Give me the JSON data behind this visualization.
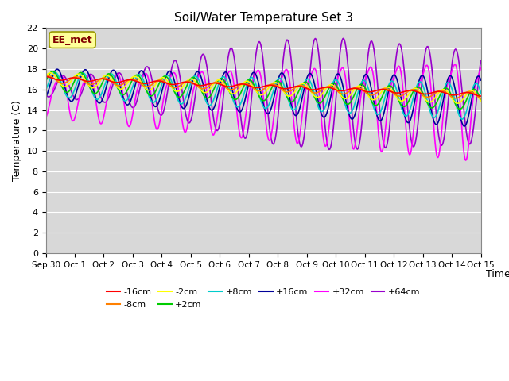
{
  "title": "Soil/Water Temperature Set 3",
  "xlabel": "Time",
  "ylabel": "Temperature (C)",
  "ylim": [
    0,
    22
  ],
  "yticks": [
    0,
    2,
    4,
    6,
    8,
    10,
    12,
    14,
    16,
    18,
    20,
    22
  ],
  "annotation": "EE_met",
  "annotation_box_color": "#ffff99",
  "annotation_text_color": "#800000",
  "xtick_labels": [
    "Sep 30",
    "Oct 1",
    "Oct 2",
    "Oct 3",
    "Oct 4",
    "Oct 5",
    "Oct 6",
    "Oct 7",
    "Oct 8",
    "Oct 9",
    "Oct 10",
    "Oct 11",
    "Oct 12",
    "Oct 13",
    "Oct 14",
    "Oct 15"
  ],
  "legend_order": [
    "-16cm",
    "-8cm",
    "-2cm",
    "+2cm",
    "+8cm",
    "+16cm",
    "+32cm",
    "+64cm"
  ],
  "legend_colors": [
    "#ff0000",
    "#ff8000",
    "#ffff00",
    "#00cc00",
    "#00cccc",
    "#000099",
    "#ff00ff",
    "#9900cc"
  ]
}
